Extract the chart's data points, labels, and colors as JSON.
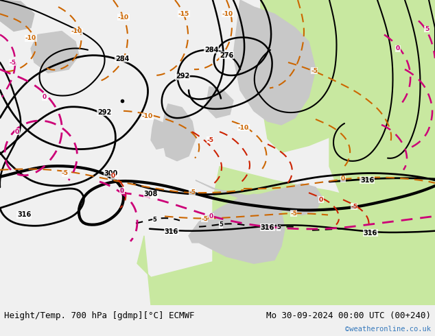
{
  "title_left": "Height/Temp. 700 hPa [gdmp][°C] ECMWF",
  "title_right": "Mo 30-09-2024 00:00 UTC (00+240)",
  "watermark": "©weatheronline.co.uk",
  "sea_color": "#c8e8a0",
  "land_color": "#d4d4d4",
  "ocean_left_color": "#c8e8a0",
  "footer_bg": "#f0f0f0",
  "text_color": "#000000",
  "watermark_color": "#3377bb",
  "font_size_title": 9.0,
  "font_size_watermark": 7.5,
  "orange_color": "#cc6600",
  "red_color": "#cc2200",
  "pink_color": "#cc0077",
  "black_color": "#000000"
}
